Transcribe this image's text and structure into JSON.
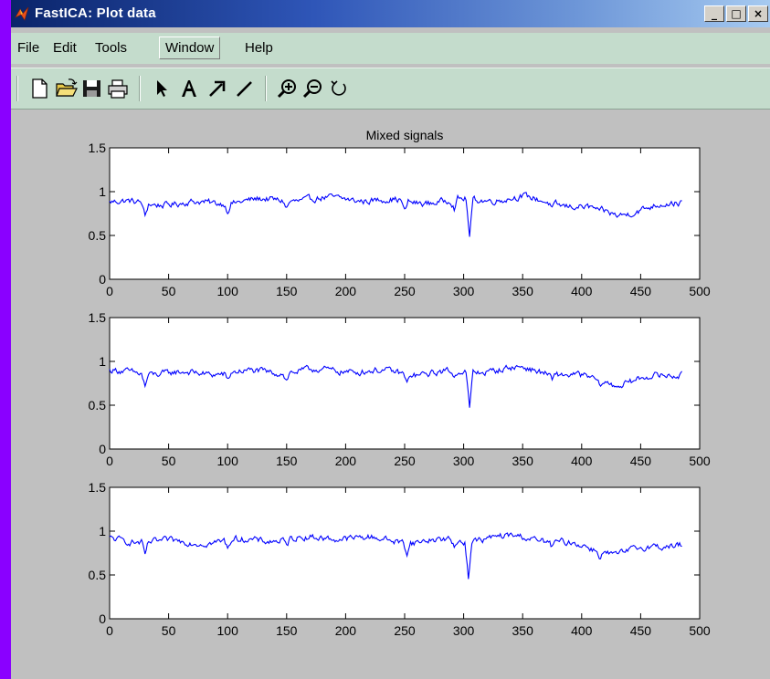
{
  "window": {
    "title": "FastICA: Plot data",
    "controls": {
      "minimize": "_",
      "maximize": "□",
      "close": "×"
    }
  },
  "menu": {
    "items": [
      {
        "label": "File"
      },
      {
        "label": "Edit"
      },
      {
        "label": "Tools"
      },
      {
        "label": "Window"
      },
      {
        "label": "Help"
      }
    ]
  },
  "toolbar": {
    "buttons": [
      {
        "icon": "new-file-icon"
      },
      {
        "icon": "open-folder-icon"
      },
      {
        "icon": "save-disk-icon"
      },
      {
        "icon": "print-icon"
      },
      {
        "icon": "select-arrow-icon"
      },
      {
        "icon": "insert-text-icon"
      },
      {
        "icon": "insert-arrow-icon"
      },
      {
        "icon": "insert-line-icon"
      },
      {
        "icon": "zoom-in-icon"
      },
      {
        "icon": "zoom-out-icon"
      },
      {
        "icon": "rotate-icon"
      }
    ]
  },
  "colors": {
    "line": "#0000ff",
    "plot_bg": "#ffffff",
    "figure_bg": "#c0c0c0"
  },
  "chart_data": [
    {
      "type": "line",
      "title": "Mixed signals",
      "xlim": [
        0,
        500
      ],
      "ylim": [
        0,
        1.5
      ],
      "xticks": [
        "0",
        "50",
        "100",
        "150",
        "200",
        "250",
        "300",
        "350",
        "400",
        "450",
        "500"
      ],
      "yticks": [
        "0",
        "0.5",
        "1",
        "1.5"
      ],
      "grid": false,
      "series": [
        {
          "x": [
            0,
            485
          ],
          "x_count": 486,
          "baseline": [
            [
              0,
              0.88
            ],
            [
              60,
              0.86
            ],
            [
              130,
              0.9
            ],
            [
              200,
              0.92
            ],
            [
              260,
              0.88
            ],
            [
              300,
              0.9
            ],
            [
              350,
              0.93
            ],
            [
              400,
              0.82
            ],
            [
              430,
              0.74
            ],
            [
              460,
              0.82
            ],
            [
              485,
              0.88
            ]
          ],
          "dips": [
            [
              30,
              0.72
            ],
            [
              100,
              0.8
            ],
            [
              150,
              0.83
            ],
            [
              250,
              0.76
            ],
            [
              292,
              0.8
            ],
            [
              305,
              0.47
            ],
            [
              375,
              0.82
            ],
            [
              415,
              0.74
            ]
          ]
        }
      ]
    },
    {
      "type": "line",
      "title": "",
      "xlim": [
        0,
        500
      ],
      "ylim": [
        0,
        1.5
      ],
      "xticks": [
        "0",
        "50",
        "100",
        "150",
        "200",
        "250",
        "300",
        "350",
        "400",
        "450",
        "500"
      ],
      "yticks": [
        "0",
        "0.5",
        "1",
        "1.5"
      ],
      "grid": false,
      "series": [
        {
          "x": [
            0,
            485
          ],
          "x_count": 486,
          "baseline": [
            [
              0,
              0.88
            ],
            [
              60,
              0.86
            ],
            [
              130,
              0.88
            ],
            [
              200,
              0.9
            ],
            [
              260,
              0.86
            ],
            [
              300,
              0.88
            ],
            [
              350,
              0.92
            ],
            [
              400,
              0.82
            ],
            [
              430,
              0.74
            ],
            [
              460,
              0.82
            ],
            [
              485,
              0.86
            ]
          ],
          "dips": [
            [
              30,
              0.73
            ],
            [
              100,
              0.79
            ],
            [
              150,
              0.8
            ],
            [
              252,
              0.75
            ],
            [
              292,
              0.79
            ],
            [
              305,
              0.47
            ],
            [
              375,
              0.8
            ],
            [
              415,
              0.72
            ]
          ]
        }
      ]
    },
    {
      "type": "line",
      "title": "",
      "xlim": [
        0,
        500
      ],
      "ylim": [
        0,
        1.5
      ],
      "xticks": [
        "0",
        "50",
        "100",
        "150",
        "200",
        "250",
        "300",
        "350",
        "400",
        "450",
        "500"
      ],
      "yticks": [
        "0",
        "0.5",
        "1",
        "1.5"
      ],
      "grid": false,
      "series": [
        {
          "x": [
            0,
            485
          ],
          "x_count": 486,
          "baseline": [
            [
              0,
              0.9
            ],
            [
              60,
              0.87
            ],
            [
              130,
              0.9
            ],
            [
              200,
              0.93
            ],
            [
              260,
              0.88
            ],
            [
              300,
              0.9
            ],
            [
              350,
              0.94
            ],
            [
              400,
              0.83
            ],
            [
              430,
              0.74
            ],
            [
              460,
              0.82
            ],
            [
              485,
              0.86
            ]
          ],
          "dips": [
            [
              30,
              0.74
            ],
            [
              100,
              0.8
            ],
            [
              150,
              0.82
            ],
            [
              252,
              0.77
            ],
            [
              292,
              0.8
            ],
            [
              304,
              0.48
            ],
            [
              375,
              0.82
            ],
            [
              415,
              0.73
            ]
          ]
        }
      ]
    }
  ]
}
